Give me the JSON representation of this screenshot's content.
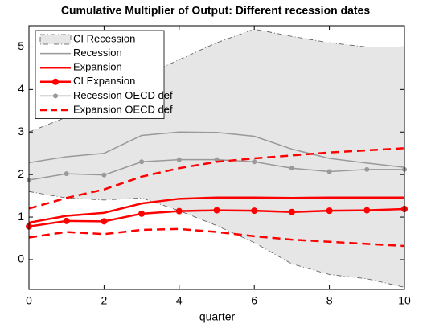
{
  "chart_data": {
    "type": "line",
    "title": "Cumulative Multiplier of Output: Different recession dates",
    "x_label": "quarter",
    "x": [
      0,
      1,
      2,
      3,
      4,
      5,
      6,
      7,
      8,
      9,
      10
    ],
    "xlim": [
      0,
      10
    ],
    "xticks": [
      0,
      2,
      4,
      6,
      8,
      10
    ],
    "ylim": [
      -0.7,
      5.5
    ],
    "yticks": [
      0,
      1,
      2,
      3,
      4,
      5
    ],
    "grid": false,
    "legend": "top-left",
    "series": [
      {
        "name": "CI Recession",
        "kind": "band",
        "color": "#e6e6e6",
        "edge_color": "#555555",
        "upper": [
          3.0,
          3.35,
          3.75,
          4.3,
          4.7,
          5.1,
          5.42,
          5.25,
          5.1,
          5.0,
          5.0
        ],
        "lower": [
          1.6,
          1.45,
          1.4,
          1.45,
          1.15,
          0.8,
          0.4,
          -0.1,
          -0.35,
          -0.45,
          -0.65
        ]
      },
      {
        "name": "Recession",
        "kind": "line",
        "color": "#999999",
        "width": 1.5,
        "marker": false,
        "dash": false,
        "values": [
          2.28,
          2.42,
          2.5,
          2.92,
          3.0,
          2.99,
          2.9,
          2.6,
          2.38,
          2.27,
          2.17
        ]
      },
      {
        "name": "Expansion",
        "kind": "line",
        "color": "#ff0000",
        "width": 2.5,
        "marker": false,
        "dash": false,
        "values": [
          0.87,
          1.03,
          1.1,
          1.32,
          1.43,
          1.46,
          1.46,
          1.45,
          1.46,
          1.46,
          1.46
        ]
      },
      {
        "name": "CI Expansion",
        "kind": "line",
        "color": "#ff0000",
        "width": 2.5,
        "marker": true,
        "dash": false,
        "values": [
          0.78,
          0.91,
          0.9,
          1.08,
          1.14,
          1.16,
          1.15,
          1.12,
          1.15,
          1.16,
          1.19
        ]
      },
      {
        "name": "Recession OECD def",
        "kind": "line",
        "color": "#999999",
        "width": 1.5,
        "marker": true,
        "dash": false,
        "values": [
          1.87,
          2.02,
          1.99,
          2.3,
          2.35,
          2.35,
          2.3,
          2.15,
          2.07,
          2.12,
          2.12
        ]
      },
      {
        "name": "Expansion OECD def",
        "kind": "dashband",
        "color": "#ff0000",
        "width": 2.5,
        "upper": [
          1.2,
          1.45,
          1.65,
          1.95,
          2.15,
          2.3,
          2.38,
          2.45,
          2.52,
          2.57,
          2.62
        ],
        "lower": [
          0.52,
          0.65,
          0.6,
          0.7,
          0.72,
          0.65,
          0.55,
          0.47,
          0.42,
          0.37,
          0.32
        ]
      }
    ]
  }
}
